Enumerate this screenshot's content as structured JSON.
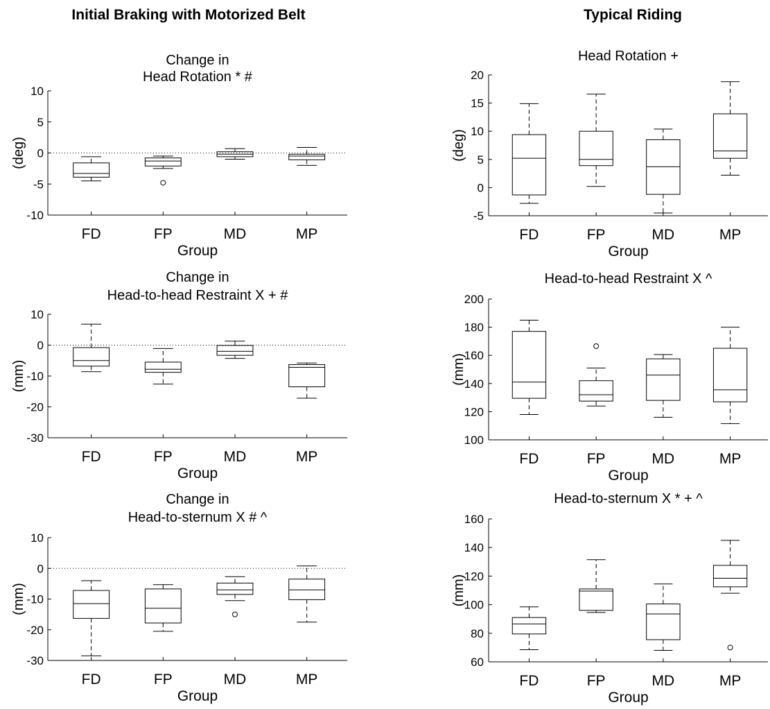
{
  "columns": [
    {
      "title": "Initial Braking with Motorized Belt"
    },
    {
      "title": "Typical Riding"
    }
  ],
  "chart_data": [
    {
      "type": "box",
      "title": [
        "Change in",
        "Head Rotation * #"
      ],
      "xlabel": "Group",
      "ylabel": "(deg)",
      "ylim": [
        -10,
        10
      ],
      "yticks": [
        10,
        5,
        0,
        -5,
        -10
      ],
      "zero_line": true,
      "categories": [
        "FD",
        "FP",
        "MD",
        "MP"
      ],
      "boxes": [
        {
          "whislo": -4.5,
          "q1": -3.9,
          "med": -3.3,
          "q3": -1.6,
          "whishi": -0.6,
          "fliers": []
        },
        {
          "whislo": -2.5,
          "q1": -2.1,
          "med": -1.3,
          "q3": -0.8,
          "whishi": -0.5,
          "fliers": [
            -4.8
          ]
        },
        {
          "whislo": -1.0,
          "q1": -0.6,
          "med": -0.2,
          "q3": 0.2,
          "whishi": 0.7,
          "fliers": []
        },
        {
          "whislo": -2.0,
          "q1": -1.1,
          "med": -0.5,
          "q3": -0.2,
          "whishi": 0.9,
          "fliers": []
        }
      ]
    },
    {
      "type": "box",
      "title": [
        "Head Rotation +"
      ],
      "xlabel": "Group",
      "ylabel": "(deg)",
      "ylim": [
        -5,
        20
      ],
      "yticks": [
        20,
        15,
        10,
        5,
        0,
        -5
      ],
      "zero_line": false,
      "categories": [
        "FD",
        "FP",
        "MD",
        "MP"
      ],
      "boxes": [
        {
          "whislo": -2.8,
          "q1": -1.3,
          "med": 5.2,
          "q3": 9.4,
          "whishi": 14.9,
          "fliers": []
        },
        {
          "whislo": 0.2,
          "q1": 3.9,
          "med": 5.0,
          "q3": 10.0,
          "whishi": 16.6,
          "fliers": []
        },
        {
          "whislo": -4.5,
          "q1": -1.2,
          "med": 3.7,
          "q3": 8.5,
          "whishi": 10.4,
          "fliers": []
        },
        {
          "whislo": 2.2,
          "q1": 5.2,
          "med": 6.5,
          "q3": 13.1,
          "whishi": 18.8,
          "fliers": []
        }
      ]
    },
    {
      "type": "box",
      "title": [
        "Change in",
        "Head-to-head Restraint X + #"
      ],
      "xlabel": "Group",
      "ylabel": "(mm)",
      "ylim": [
        -30,
        10
      ],
      "yticks": [
        10,
        0,
        -10,
        -20,
        -30
      ],
      "zero_line": true,
      "categories": [
        "FD",
        "FP",
        "MD",
        "MP"
      ],
      "boxes": [
        {
          "whislo": -8.6,
          "q1": -6.8,
          "med": -5.0,
          "q3": -0.8,
          "whishi": 6.8,
          "fliers": []
        },
        {
          "whislo": -12.6,
          "q1": -8.8,
          "med": -7.8,
          "q3": -5.5,
          "whishi": -1.1,
          "fliers": []
        },
        {
          "whislo": -4.3,
          "q1": -3.3,
          "med": -2.0,
          "q3": -0.1,
          "whishi": 1.3,
          "fliers": []
        },
        {
          "whislo": -17.2,
          "q1": -13.5,
          "med": -7.2,
          "q3": -6.3,
          "whishi": -5.8,
          "fliers": []
        }
      ]
    },
    {
      "type": "box",
      "title": [
        "Head-to-head Restraint X ^"
      ],
      "xlabel": "Group",
      "ylabel": "(mm)",
      "ylim": [
        100,
        200
      ],
      "yticks": [
        200,
        180,
        160,
        140,
        120,
        100
      ],
      "zero_line": false,
      "categories": [
        "FD",
        "FP",
        "MD",
        "MP"
      ],
      "boxes": [
        {
          "whislo": 118,
          "q1": 129.5,
          "med": 141,
          "q3": 177,
          "whishi": 185,
          "fliers": []
        },
        {
          "whislo": 124,
          "q1": 127.5,
          "med": 132,
          "q3": 142,
          "whishi": 151,
          "fliers": [
            166.5
          ]
        },
        {
          "whislo": 116,
          "q1": 128,
          "med": 146,
          "q3": 157.5,
          "whishi": 160.5,
          "fliers": []
        },
        {
          "whislo": 111.5,
          "q1": 127,
          "med": 135.5,
          "q3": 165,
          "whishi": 180,
          "fliers": []
        }
      ]
    },
    {
      "type": "box",
      "title": [
        "Change in",
        "Head-to-sternum X # ^"
      ],
      "xlabel": "Group",
      "ylabel": "(mm)",
      "ylim": [
        -30,
        10
      ],
      "yticks": [
        10,
        0,
        -10,
        -20,
        -30
      ],
      "zero_line": true,
      "categories": [
        "FD",
        "FP",
        "MD",
        "MP"
      ],
      "boxes": [
        {
          "whislo": -28.5,
          "q1": -16.3,
          "med": -11.5,
          "q3": -7.2,
          "whishi": -4.0,
          "fliers": []
        },
        {
          "whislo": -20.5,
          "q1": -17.8,
          "med": -13.0,
          "q3": -6.7,
          "whishi": -5.3,
          "fliers": []
        },
        {
          "whislo": -10.5,
          "q1": -8.5,
          "med": -7.0,
          "q3": -4.8,
          "whishi": -2.7,
          "fliers": [
            -15.0
          ]
        },
        {
          "whislo": -17.5,
          "q1": -10.2,
          "med": -7.0,
          "q3": -3.5,
          "whishi": 0.8,
          "fliers": []
        }
      ]
    },
    {
      "type": "box",
      "title": [
        "Head-to-sternum X * + ^"
      ],
      "xlabel": "Group",
      "ylabel": "(mm)",
      "ylim": [
        60,
        160
      ],
      "yticks": [
        160,
        140,
        120,
        100,
        80,
        60
      ],
      "zero_line": false,
      "categories": [
        "FD",
        "FP",
        "MD",
        "MP"
      ],
      "boxes": [
        {
          "whislo": 68.5,
          "q1": 79.5,
          "med": 86.5,
          "q3": 91,
          "whishi": 98.5,
          "fliers": []
        },
        {
          "whislo": 94.5,
          "q1": 96,
          "med": 109.5,
          "q3": 111,
          "whishi": 131.5,
          "fliers": []
        },
        {
          "whislo": 68,
          "q1": 75.5,
          "med": 93.5,
          "q3": 100.5,
          "whishi": 114.5,
          "fliers": []
        },
        {
          "whislo": 108,
          "q1": 112.5,
          "med": 118.5,
          "q3": 127.5,
          "whishi": 145,
          "fliers": [
            70
          ]
        }
      ]
    }
  ]
}
